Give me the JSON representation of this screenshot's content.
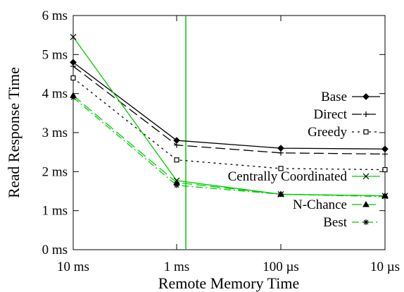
{
  "chart_data": {
    "type": "line",
    "xlabel": "Remote Memory Time",
    "ylabel": "Read Response Time",
    "x_ticks": [
      "10 ms",
      "1 ms",
      "100 µs",
      "10 µs"
    ],
    "y_ticks": [
      "0 ms",
      "1 ms",
      "2 ms",
      "3 ms",
      "4 ms",
      "5 ms",
      "6 ms"
    ],
    "ylim": [
      0,
      6
    ],
    "x_scale": "log (reversed)",
    "legend_position": "right",
    "marker_line": {
      "x": "1 ms",
      "color": "#00cc00"
    },
    "series": [
      {
        "name": "Base",
        "color": "#000000",
        "dash": "solid",
        "marker": "diamond",
        "values": [
          4.8,
          2.8,
          2.6,
          2.58
        ]
      },
      {
        "name": "Direct",
        "color": "#000000",
        "dash": "long-dash",
        "marker": "plus",
        "values": [
          4.7,
          2.68,
          2.48,
          2.45
        ]
      },
      {
        "name": "Greedy",
        "color": "#000000",
        "dash": "dotted",
        "marker": "square",
        "values": [
          4.4,
          2.3,
          2.08,
          2.05
        ]
      },
      {
        "name": "Centrally Coordinated",
        "color": "#00cc00",
        "dash": "solid",
        "marker": "x",
        "values": [
          5.45,
          1.77,
          1.42,
          1.38
        ]
      },
      {
        "name": "N-Chance",
        "color": "#00cc00",
        "dash": "long-dash",
        "marker": "triangle",
        "values": [
          3.95,
          1.72,
          1.42,
          1.38
        ]
      },
      {
        "name": "Best",
        "color": "#00cc00",
        "dash": "dash-dot",
        "marker": "star",
        "values": [
          3.9,
          1.65,
          1.42,
          1.36
        ]
      }
    ]
  }
}
